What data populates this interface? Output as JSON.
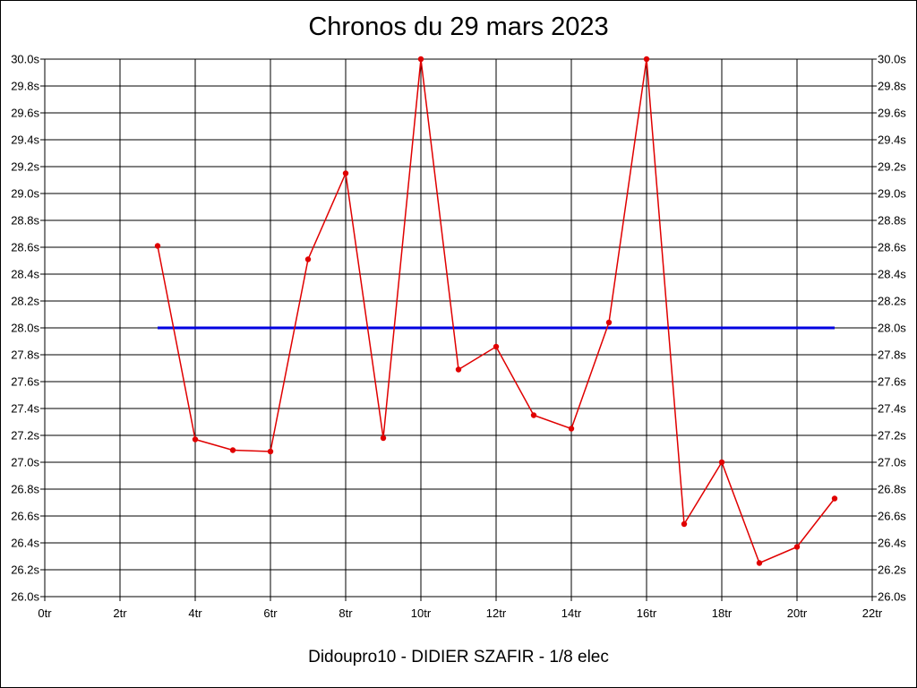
{
  "chart_data": {
    "type": "line",
    "title": "Chronos du 29 mars 2023",
    "footer": "Didoupro10 - DIDIER SZAFIR - 1/8 elec",
    "xlim": [
      0,
      22
    ],
    "ylim": [
      26.0,
      30.0
    ],
    "x_ticks": [
      0,
      2,
      4,
      6,
      8,
      10,
      12,
      14,
      16,
      18,
      20,
      22
    ],
    "x_tick_labels": [
      "0tr",
      "2tr",
      "4tr",
      "6tr",
      "8tr",
      "10tr",
      "12tr",
      "14tr",
      "16tr",
      "18tr",
      "20tr",
      "22tr"
    ],
    "y_ticks": [
      26.0,
      26.2,
      26.4,
      26.6,
      26.8,
      27.0,
      27.2,
      27.4,
      27.6,
      27.8,
      28.0,
      28.2,
      28.4,
      28.6,
      28.8,
      29.0,
      29.2,
      29.4,
      29.6,
      29.8,
      30.0
    ],
    "y_tick_labels": [
      "26.0s",
      "26.2s",
      "26.4s",
      "26.6s",
      "26.8s",
      "27.0s",
      "27.2s",
      "27.4s",
      "27.6s",
      "27.8s",
      "28.0s",
      "28.2s",
      "28.4s",
      "28.6s",
      "28.8s",
      "29.0s",
      "29.2s",
      "29.4s",
      "29.6s",
      "29.8s",
      "30.0s"
    ],
    "grid": true,
    "series": [
      {
        "color": "#e00000",
        "x": [
          3,
          4,
          5,
          6,
          7,
          8,
          9,
          10,
          11,
          12,
          13,
          14,
          15,
          16,
          17,
          18,
          19,
          20,
          21
        ],
        "y": [
          28.61,
          27.17,
          27.09,
          27.08,
          28.51,
          29.15,
          27.18,
          30.0,
          27.69,
          27.86,
          27.35,
          27.25,
          28.04,
          30.0,
          26.54,
          27.0,
          26.25,
          26.37,
          26.73
        ]
      },
      {
        "color": "#0000e0",
        "x": [
          3,
          21
        ],
        "y": [
          28.0,
          28.0
        ]
      }
    ]
  }
}
